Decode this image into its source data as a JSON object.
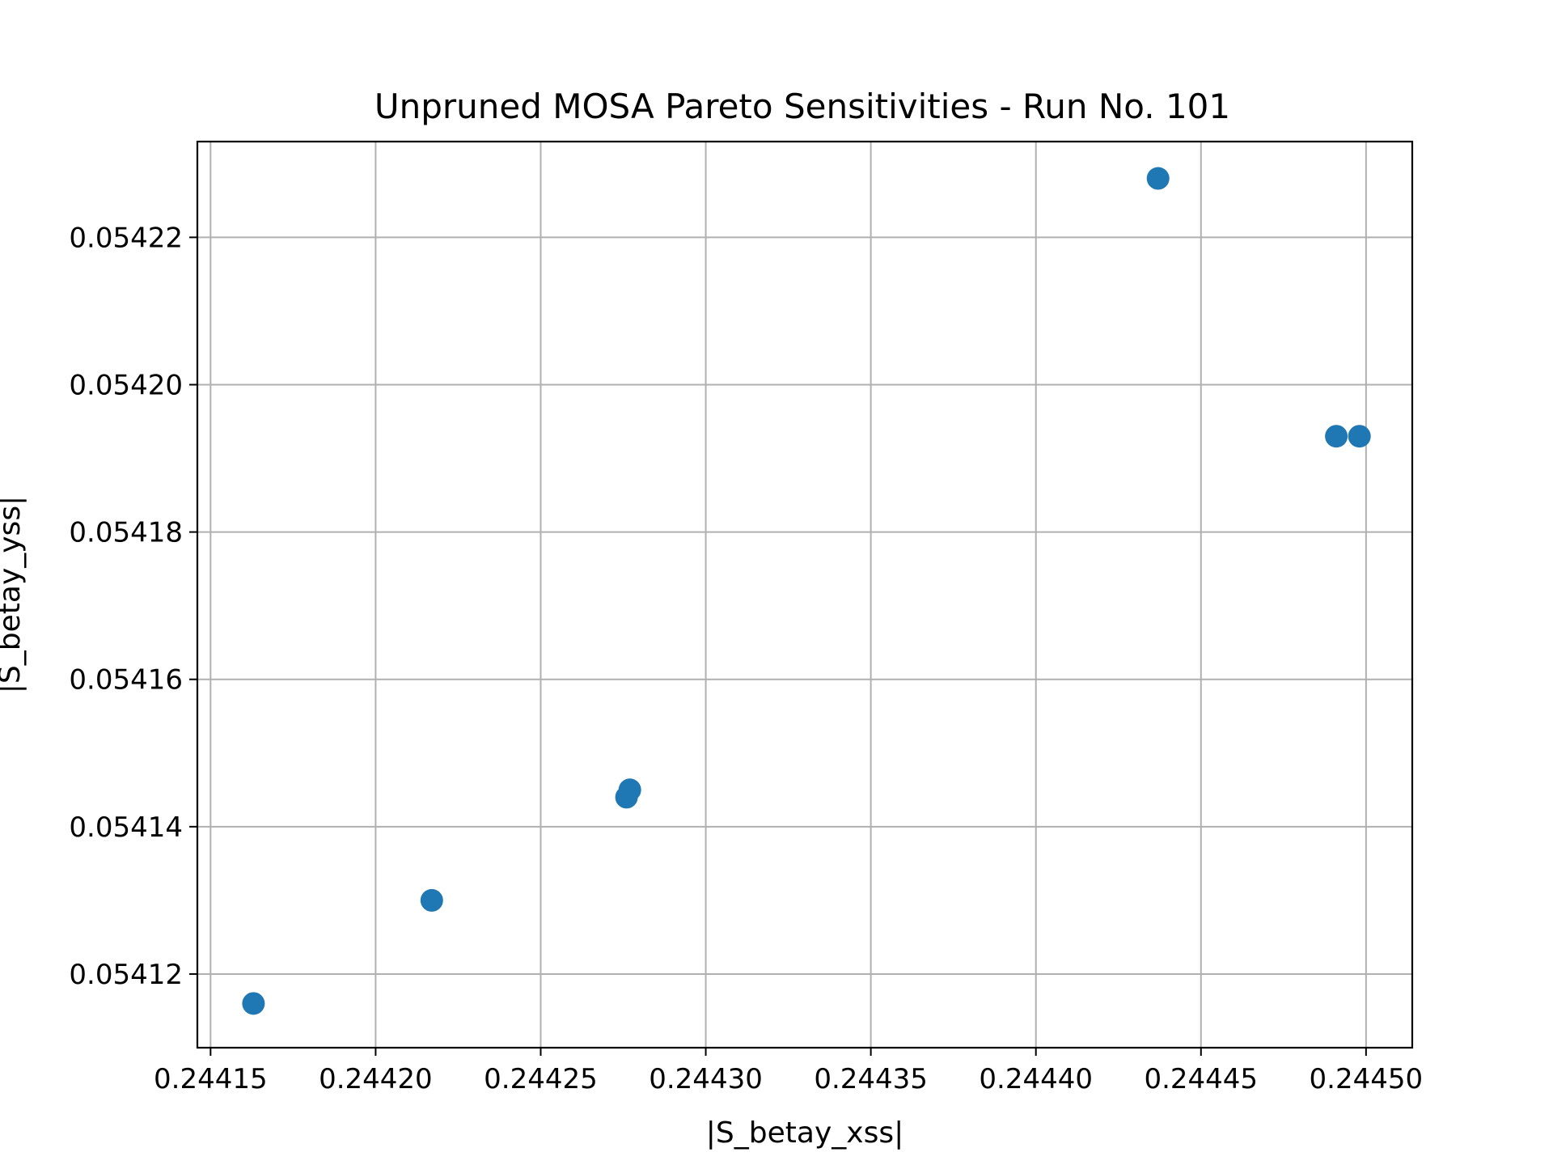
{
  "chart_data": {
    "type": "scatter",
    "title": "Unpruned MOSA Pareto Sensitivities - Run No. 101",
    "xlabel": "|S_betay_xss|",
    "ylabel": "|S_betay_yss|",
    "xlim": [
      0.244146,
      0.244514
    ],
    "ylim": [
      0.05411,
      0.054233
    ],
    "xticks": [
      0.24415,
      0.2442,
      0.24425,
      0.2443,
      0.24435,
      0.2444,
      0.24445,
      0.2445
    ],
    "xtick_labels": [
      "0.24415",
      "0.24420",
      "0.24425",
      "0.24430",
      "0.24435",
      "0.24440",
      "0.24445",
      "0.24450"
    ],
    "yticks": [
      0.05412,
      0.05414,
      0.05416,
      0.05418,
      0.0542,
      0.05422
    ],
    "ytick_labels": [
      "0.05412",
      "0.05414",
      "0.05416",
      "0.05418",
      "0.05420",
      "0.05422"
    ],
    "grid": true,
    "color": "#1f77b4",
    "points": [
      {
        "x": 0.244163,
        "y": 0.054116
      },
      {
        "x": 0.244217,
        "y": 0.05413
      },
      {
        "x": 0.244276,
        "y": 0.054144
      },
      {
        "x": 0.244277,
        "y": 0.054145
      },
      {
        "x": 0.244437,
        "y": 0.054228
      },
      {
        "x": 0.244491,
        "y": 0.054193
      },
      {
        "x": 0.244498,
        "y": 0.054193
      }
    ]
  }
}
